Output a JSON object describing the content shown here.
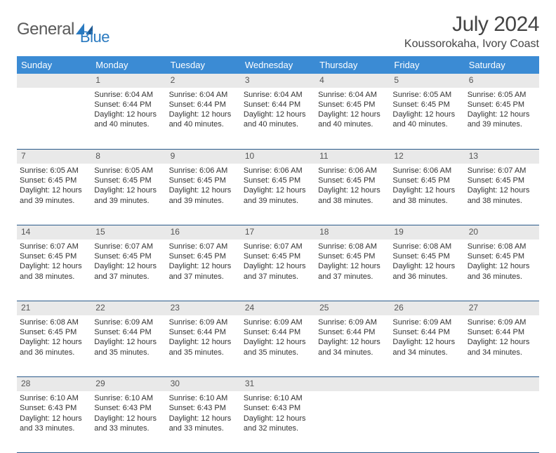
{
  "brand": {
    "part1": "General",
    "part2": "Blue"
  },
  "title": "July 2024",
  "location": "Koussorokaha, Ivory Coast",
  "colors": {
    "header_bg": "#3b8bd4",
    "header_text": "#ffffff",
    "daynum_bg": "#e9e9e9",
    "border": "#2a5a8a",
    "text": "#333333",
    "logo_gray": "#5a5a5a",
    "logo_blue": "#2a7ac0"
  },
  "weekdays": [
    "Sunday",
    "Monday",
    "Tuesday",
    "Wednesday",
    "Thursday",
    "Friday",
    "Saturday"
  ],
  "weeks": [
    {
      "nums": [
        "",
        "1",
        "2",
        "3",
        "4",
        "5",
        "6"
      ],
      "cells": [
        null,
        {
          "sunrise": "6:04 AM",
          "sunset": "6:44 PM",
          "daylight": "12 hours and 40 minutes."
        },
        {
          "sunrise": "6:04 AM",
          "sunset": "6:44 PM",
          "daylight": "12 hours and 40 minutes."
        },
        {
          "sunrise": "6:04 AM",
          "sunset": "6:44 PM",
          "daylight": "12 hours and 40 minutes."
        },
        {
          "sunrise": "6:04 AM",
          "sunset": "6:45 PM",
          "daylight": "12 hours and 40 minutes."
        },
        {
          "sunrise": "6:05 AM",
          "sunset": "6:45 PM",
          "daylight": "12 hours and 40 minutes."
        },
        {
          "sunrise": "6:05 AM",
          "sunset": "6:45 PM",
          "daylight": "12 hours and 39 minutes."
        }
      ]
    },
    {
      "nums": [
        "7",
        "8",
        "9",
        "10",
        "11",
        "12",
        "13"
      ],
      "cells": [
        {
          "sunrise": "6:05 AM",
          "sunset": "6:45 PM",
          "daylight": "12 hours and 39 minutes."
        },
        {
          "sunrise": "6:05 AM",
          "sunset": "6:45 PM",
          "daylight": "12 hours and 39 minutes."
        },
        {
          "sunrise": "6:06 AM",
          "sunset": "6:45 PM",
          "daylight": "12 hours and 39 minutes."
        },
        {
          "sunrise": "6:06 AM",
          "sunset": "6:45 PM",
          "daylight": "12 hours and 39 minutes."
        },
        {
          "sunrise": "6:06 AM",
          "sunset": "6:45 PM",
          "daylight": "12 hours and 38 minutes."
        },
        {
          "sunrise": "6:06 AM",
          "sunset": "6:45 PM",
          "daylight": "12 hours and 38 minutes."
        },
        {
          "sunrise": "6:07 AM",
          "sunset": "6:45 PM",
          "daylight": "12 hours and 38 minutes."
        }
      ]
    },
    {
      "nums": [
        "14",
        "15",
        "16",
        "17",
        "18",
        "19",
        "20"
      ],
      "cells": [
        {
          "sunrise": "6:07 AM",
          "sunset": "6:45 PM",
          "daylight": "12 hours and 38 minutes."
        },
        {
          "sunrise": "6:07 AM",
          "sunset": "6:45 PM",
          "daylight": "12 hours and 37 minutes."
        },
        {
          "sunrise": "6:07 AM",
          "sunset": "6:45 PM",
          "daylight": "12 hours and 37 minutes."
        },
        {
          "sunrise": "6:07 AM",
          "sunset": "6:45 PM",
          "daylight": "12 hours and 37 minutes."
        },
        {
          "sunrise": "6:08 AM",
          "sunset": "6:45 PM",
          "daylight": "12 hours and 37 minutes."
        },
        {
          "sunrise": "6:08 AM",
          "sunset": "6:45 PM",
          "daylight": "12 hours and 36 minutes."
        },
        {
          "sunrise": "6:08 AM",
          "sunset": "6:45 PM",
          "daylight": "12 hours and 36 minutes."
        }
      ]
    },
    {
      "nums": [
        "21",
        "22",
        "23",
        "24",
        "25",
        "26",
        "27"
      ],
      "cells": [
        {
          "sunrise": "6:08 AM",
          "sunset": "6:45 PM",
          "daylight": "12 hours and 36 minutes."
        },
        {
          "sunrise": "6:09 AM",
          "sunset": "6:44 PM",
          "daylight": "12 hours and 35 minutes."
        },
        {
          "sunrise": "6:09 AM",
          "sunset": "6:44 PM",
          "daylight": "12 hours and 35 minutes."
        },
        {
          "sunrise": "6:09 AM",
          "sunset": "6:44 PM",
          "daylight": "12 hours and 35 minutes."
        },
        {
          "sunrise": "6:09 AM",
          "sunset": "6:44 PM",
          "daylight": "12 hours and 34 minutes."
        },
        {
          "sunrise": "6:09 AM",
          "sunset": "6:44 PM",
          "daylight": "12 hours and 34 minutes."
        },
        {
          "sunrise": "6:09 AM",
          "sunset": "6:44 PM",
          "daylight": "12 hours and 34 minutes."
        }
      ]
    },
    {
      "nums": [
        "28",
        "29",
        "30",
        "31",
        "",
        "",
        ""
      ],
      "cells": [
        {
          "sunrise": "6:10 AM",
          "sunset": "6:43 PM",
          "daylight": "12 hours and 33 minutes."
        },
        {
          "sunrise": "6:10 AM",
          "sunset": "6:43 PM",
          "daylight": "12 hours and 33 minutes."
        },
        {
          "sunrise": "6:10 AM",
          "sunset": "6:43 PM",
          "daylight": "12 hours and 33 minutes."
        },
        {
          "sunrise": "6:10 AM",
          "sunset": "6:43 PM",
          "daylight": "12 hours and 32 minutes."
        },
        null,
        null,
        null
      ]
    }
  ],
  "labels": {
    "sunrise": "Sunrise: ",
    "sunset": "Sunset: ",
    "daylight": "Daylight: "
  }
}
